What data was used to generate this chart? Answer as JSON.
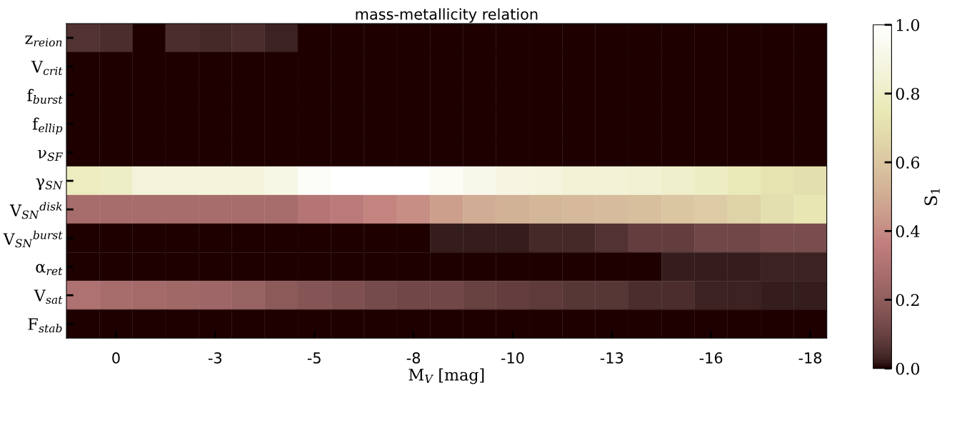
{
  "chart_data": {
    "type": "heatmap",
    "title": "mass-metallicity relation",
    "xlabel": "M$_{V}$ [mag]",
    "clabel": "S$_{1}$",
    "categories": [
      null,
      "0",
      null,
      null,
      "-3",
      null,
      null,
      "-5",
      null,
      null,
      "-8",
      null,
      null,
      "-10",
      null,
      null,
      "-13",
      null,
      null,
      "-16",
      null,
      null,
      "-18"
    ],
    "y_categories": [
      "z$_{reion}$",
      "V$_{crit}$",
      "f$_{burst}$",
      "f$_{ellip}$",
      "ν$_{SF}$",
      "γ$_{SN}$",
      "V$_{SN}$$^{disk}$",
      "V$_{SN}$$^{burst}$",
      "α$_{ret}$",
      "V$_{sat}$",
      "F$_{stab}$"
    ],
    "cells": [
      [
        0.06,
        0.05,
        0,
        0.05,
        0.04,
        0.05,
        0.03,
        0,
        0,
        0,
        0,
        0,
        0,
        0,
        0,
        0,
        0,
        0,
        0,
        0,
        0,
        0,
        0
      ],
      [
        0,
        0,
        0,
        0,
        0,
        0,
        0,
        0,
        0,
        0,
        0,
        0,
        0,
        0,
        0,
        0,
        0,
        0,
        0,
        0,
        0,
        0,
        0
      ],
      [
        0,
        0,
        0,
        0,
        0,
        0,
        0,
        0,
        0,
        0,
        0,
        0,
        0,
        0,
        0,
        0,
        0,
        0,
        0,
        0,
        0,
        0,
        0
      ],
      [
        0,
        0,
        0,
        0,
        0,
        0,
        0,
        0,
        0,
        0,
        0,
        0,
        0,
        0,
        0,
        0,
        0,
        0,
        0,
        0,
        0,
        0,
        0
      ],
      [
        0,
        0,
        0,
        0,
        0,
        0,
        0,
        0,
        0,
        0,
        0,
        0,
        0,
        0,
        0,
        0,
        0,
        0,
        0,
        0,
        0,
        0,
        0
      ],
      [
        0.78,
        0.8,
        0.86,
        0.86,
        0.87,
        0.87,
        0.9,
        0.97,
        1.0,
        1.0,
        1.0,
        0.96,
        0.92,
        0.89,
        0.88,
        0.85,
        0.85,
        0.84,
        0.82,
        0.79,
        0.76,
        0.72,
        0.7
      ],
      [
        0.27,
        0.27,
        0.27,
        0.27,
        0.27,
        0.27,
        0.27,
        0.32,
        0.34,
        0.38,
        0.41,
        0.46,
        0.5,
        0.52,
        0.54,
        0.55,
        0.56,
        0.57,
        0.6,
        0.62,
        0.65,
        0.7,
        0.74
      ],
      [
        0,
        0,
        0,
        0,
        0,
        0,
        0,
        0,
        0,
        0,
        0,
        0.02,
        0.02,
        0.02,
        0.04,
        0.04,
        0.06,
        0.09,
        0.09,
        0.12,
        0.12,
        0.14,
        0.14
      ],
      [
        0,
        0,
        0,
        0,
        0,
        0,
        0,
        0,
        0,
        0,
        0,
        0,
        0,
        0,
        0,
        0,
        0,
        0,
        0.02,
        0.02,
        0.02,
        0.03,
        0.03
      ],
      [
        0.3,
        0.27,
        0.26,
        0.25,
        0.24,
        0.22,
        0.19,
        0.17,
        0.15,
        0.13,
        0.12,
        0.12,
        0.1,
        0.09,
        0.08,
        0.07,
        0.07,
        0.05,
        0.05,
        0.03,
        0.03,
        0.02,
        0.02
      ],
      [
        0,
        0,
        0,
        0,
        0,
        0,
        0,
        0,
        0,
        0,
        0,
        0,
        0,
        0,
        0,
        0,
        0,
        0,
        0,
        0,
        0,
        0,
        0
      ]
    ],
    "clim": [
      0.0,
      1.0
    ],
    "cticks": [
      {
        "value": 0,
        "label": "0.0"
      },
      {
        "value": 0.2,
        "label": "0.2"
      },
      {
        "value": 0.4,
        "label": "0.4"
      },
      {
        "value": 0.6,
        "label": "0.6"
      },
      {
        "value": 0.8,
        "label": "0.8"
      },
      {
        "value": 1,
        "label": "1.0"
      }
    ]
  }
}
